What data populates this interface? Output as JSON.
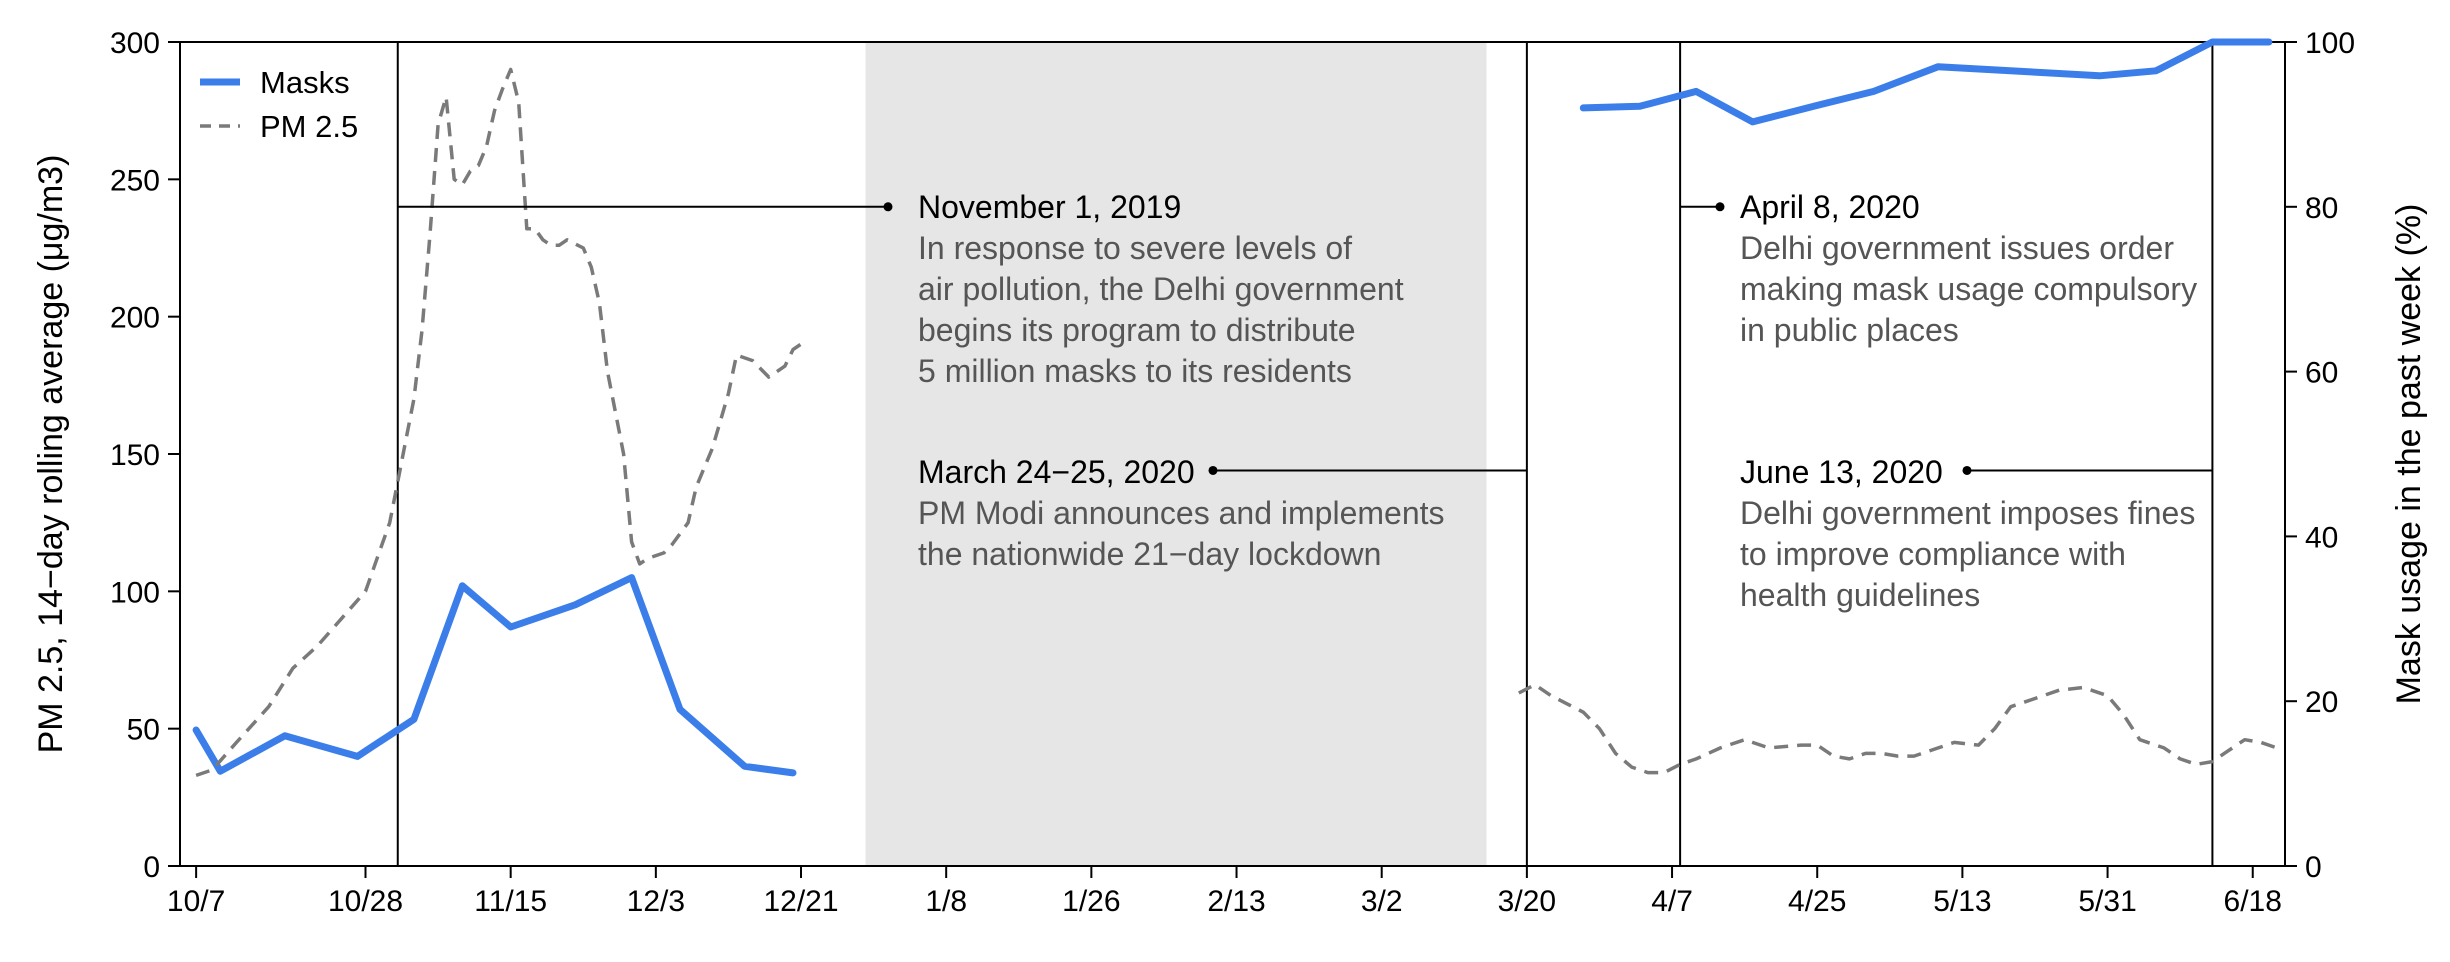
{
  "chart_data": {
    "type": "line",
    "title": "",
    "x_tick_labels": [
      "10/7",
      "10/28",
      "11/15",
      "12/3",
      "12/21",
      "1/8",
      "1/26",
      "2/13",
      "3/2",
      "3/20",
      "4/7",
      "4/25",
      "5/13",
      "5/31",
      "6/18"
    ],
    "ylabel_left": "PM 2.5, 14−day rolling average (μg/m3)",
    "ylabel_right": "Mask usage in the past week (%)",
    "ylim_left": [
      0,
      300
    ],
    "ylim_right": [
      0,
      100
    ],
    "y_ticks_left": [
      "0",
      "50",
      "100",
      "150",
      "200",
      "250",
      "300"
    ],
    "y_ticks_right": [
      "0",
      "20",
      "40",
      "60",
      "80",
      "100"
    ],
    "grid": false,
    "legend_position": "top-left",
    "shaded_period": {
      "start": "12/29",
      "end": "3/15",
      "color": "#e6e6e6"
    },
    "series": [
      {
        "name": "Masks",
        "axis": "right",
        "color": "#3b7ee9",
        "style": "solid",
        "segments": [
          [
            {
              "x": "10/7",
              "y": 16.5
            },
            {
              "x": "10/10",
              "y": 11.5
            },
            {
              "x": "10/18",
              "y": 15.8
            },
            {
              "x": "10/27",
              "y": 13.3
            },
            {
              "x": "11/3",
              "y": 17.8
            },
            {
              "x": "11/9",
              "y": 34.0
            },
            {
              "x": "11/15",
              "y": 29.0
            },
            {
              "x": "11/23",
              "y": 31.7
            },
            {
              "x": "11/30",
              "y": 35.0
            },
            {
              "x": "12/6",
              "y": 19.0
            },
            {
              "x": "12/14",
              "y": 12.1
            },
            {
              "x": "12/20",
              "y": 11.3
            }
          ],
          [
            {
              "x": "3/27",
              "y": 92.0
            },
            {
              "x": "4/3",
              "y": 92.2
            },
            {
              "x": "4/10",
              "y": 94.0
            },
            {
              "x": "4/17",
              "y": 90.3
            },
            {
              "x": "4/25",
              "y": 92.3
            },
            {
              "x": "5/2",
              "y": 94.0
            },
            {
              "x": "5/10",
              "y": 97.0
            },
            {
              "x": "5/30",
              "y": 95.9
            },
            {
              "x": "6/6",
              "y": 96.5
            },
            {
              "x": "6/13",
              "y": 100.0
            },
            {
              "x": "6/20",
              "y": 100.0
            }
          ]
        ]
      },
      {
        "name": "PM 2.5",
        "axis": "left",
        "color": "#7a7a7a",
        "style": "dashed",
        "segments": [
          [
            {
              "x": "10/7",
              "y": 33
            },
            {
              "x": "10/9",
              "y": 35
            },
            {
              "x": "10/12",
              "y": 45
            },
            {
              "x": "10/16",
              "y": 58
            },
            {
              "x": "10/19",
              "y": 72
            },
            {
              "x": "10/22",
              "y": 80
            },
            {
              "x": "10/25",
              "y": 90
            },
            {
              "x": "10/28",
              "y": 100
            },
            {
              "x": "10/31",
              "y": 125
            },
            {
              "x": "11/1",
              "y": 140
            },
            {
              "x": "11/2",
              "y": 155
            },
            {
              "x": "11/3",
              "y": 170
            },
            {
              "x": "11/4",
              "y": 195
            },
            {
              "x": "11/5",
              "y": 230
            },
            {
              "x": "11/6",
              "y": 270
            },
            {
              "x": "11/7",
              "y": 280
            },
            {
              "x": "11/8",
              "y": 250
            },
            {
              "x": "11/9",
              "y": 248
            },
            {
              "x": "11/10",
              "y": 253
            },
            {
              "x": "11/11",
              "y": 255
            },
            {
              "x": "11/12",
              "y": 262
            },
            {
              "x": "11/13",
              "y": 275
            },
            {
              "x": "11/14",
              "y": 283
            },
            {
              "x": "11/15",
              "y": 290
            },
            {
              "x": "11/16",
              "y": 278
            },
            {
              "x": "11/17",
              "y": 232
            },
            {
              "x": "11/18",
              "y": 232
            },
            {
              "x": "11/19",
              "y": 228
            },
            {
              "x": "11/20",
              "y": 226
            },
            {
              "x": "11/21",
              "y": 226
            },
            {
              "x": "11/22",
              "y": 228
            },
            {
              "x": "11/24",
              "y": 225
            },
            {
              "x": "11/25",
              "y": 218
            },
            {
              "x": "11/26",
              "y": 205
            },
            {
              "x": "11/27",
              "y": 180
            },
            {
              "x": "11/29",
              "y": 150
            },
            {
              "x": "11/30",
              "y": 118
            },
            {
              "x": "12/1",
              "y": 110
            },
            {
              "x": "12/2",
              "y": 112
            },
            {
              "x": "12/4",
              "y": 114
            },
            {
              "x": "12/5",
              "y": 117
            },
            {
              "x": "12/7",
              "y": 125
            },
            {
              "x": "12/8",
              "y": 138
            },
            {
              "x": "12/10",
              "y": 152
            },
            {
              "x": "12/12",
              "y": 172
            },
            {
              "x": "12/13",
              "y": 186
            },
            {
              "x": "12/15",
              "y": 184
            },
            {
              "x": "12/17",
              "y": 178
            },
            {
              "x": "12/19",
              "y": 182
            },
            {
              "x": "12/20",
              "y": 188
            },
            {
              "x": "12/21",
              "y": 190
            }
          ],
          [
            {
              "x": "3/19",
              "y": 63
            },
            {
              "x": "3/21",
              "y": 66
            },
            {
              "x": "3/23",
              "y": 62
            },
            {
              "x": "3/25",
              "y": 59
            },
            {
              "x": "3/27",
              "y": 56
            },
            {
              "x": "3/29",
              "y": 50
            },
            {
              "x": "3/31",
              "y": 41
            },
            {
              "x": "4/2",
              "y": 36
            },
            {
              "x": "4/4",
              "y": 34
            },
            {
              "x": "4/6",
              "y": 34
            },
            {
              "x": "4/8",
              "y": 37
            },
            {
              "x": "4/10",
              "y": 39
            },
            {
              "x": "4/13",
              "y": 43
            },
            {
              "x": "4/16",
              "y": 46
            },
            {
              "x": "4/19",
              "y": 43
            },
            {
              "x": "4/23",
              "y": 44
            },
            {
              "x": "4/25",
              "y": 44
            },
            {
              "x": "4/27",
              "y": 40
            },
            {
              "x": "4/29",
              "y": 39
            },
            {
              "x": "5/1",
              "y": 41
            },
            {
              "x": "5/3",
              "y": 41
            },
            {
              "x": "5/5",
              "y": 40
            },
            {
              "x": "5/7",
              "y": 40
            },
            {
              "x": "5/10",
              "y": 43
            },
            {
              "x": "5/12",
              "y": 45
            },
            {
              "x": "5/15",
              "y": 44
            },
            {
              "x": "5/17",
              "y": 50
            },
            {
              "x": "5/19",
              "y": 58
            },
            {
              "x": "5/22",
              "y": 61
            },
            {
              "x": "5/25",
              "y": 64
            },
            {
              "x": "5/28",
              "y": 65
            },
            {
              "x": "5/31",
              "y": 62
            },
            {
              "x": "6/2",
              "y": 55
            },
            {
              "x": "6/4",
              "y": 46
            },
            {
              "x": "6/7",
              "y": 43
            },
            {
              "x": "6/9",
              "y": 39
            },
            {
              "x": "6/11",
              "y": 37
            },
            {
              "x": "6/13",
              "y": 38
            },
            {
              "x": "6/15",
              "y": 42
            },
            {
              "x": "6/17",
              "y": 46
            },
            {
              "x": "6/19",
              "y": 45
            },
            {
              "x": "6/21",
              "y": 43
            }
          ]
        ]
      }
    ],
    "annotations": [
      {
        "event_date": "11/1",
        "title": "November 1, 2019",
        "lines": [
          "In response to severe levels of",
          "air pollution, the Delhi government",
          "begins its program to distribute",
          "5 million masks to its residents"
        ],
        "connector_y": 80
      },
      {
        "event_date": "3/20",
        "title": "March 24−25, 2020",
        "lines": [
          "PM Modi announces and implements",
          "the nationwide 21−day lockdown"
        ],
        "connector_y": 48
      },
      {
        "event_date": "4/8",
        "title": "April 8, 2020",
        "lines": [
          "Delhi government issues order",
          "making mask usage compulsory",
          "in public places"
        ],
        "connector_y": 80
      },
      {
        "event_date": "6/13",
        "title": "June 13, 2020",
        "lines": [
          "Delhi government imposes fines",
          "to improve compliance with",
          "health guidelines"
        ],
        "connector_y": 48
      }
    ]
  }
}
